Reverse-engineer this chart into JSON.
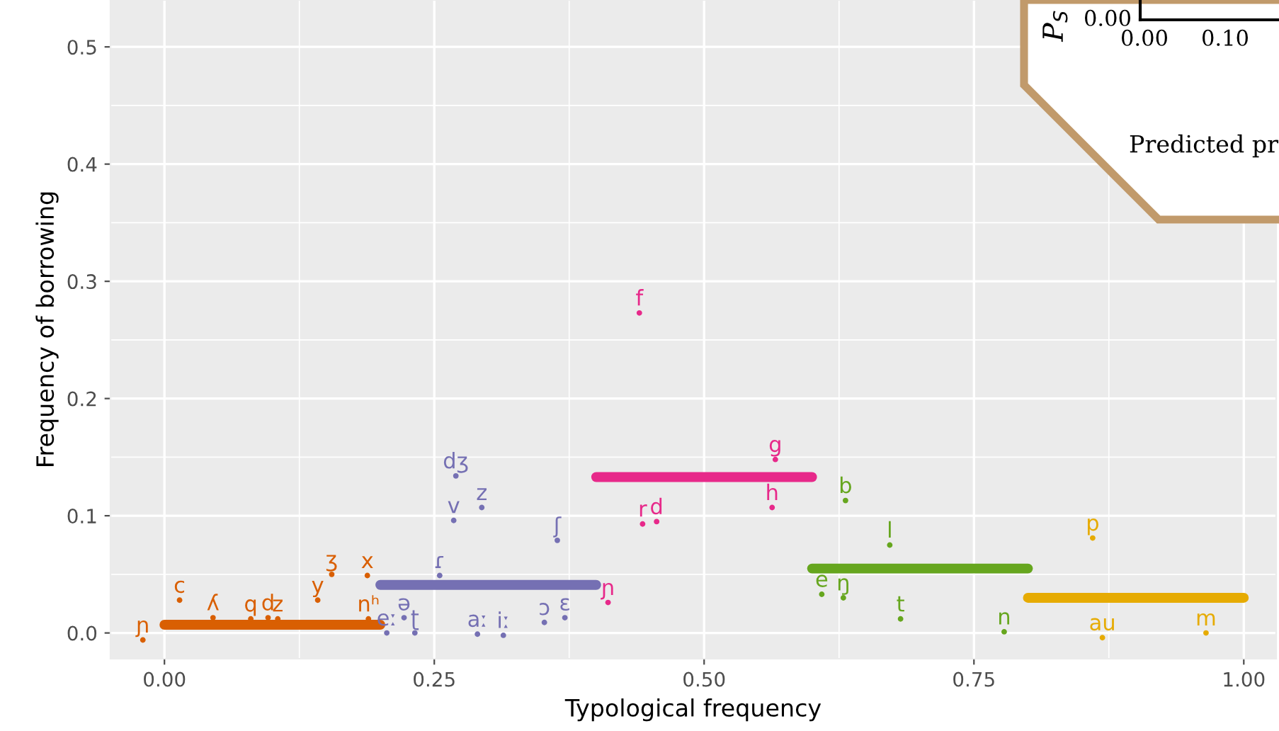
{
  "chart_data": {
    "type": "scatter",
    "xlabel": "Typological frequency",
    "ylabel": "Frequency of borrowing",
    "xlim": [
      -0.05,
      1.03
    ],
    "ylim": [
      -0.022,
      0.54
    ],
    "xticks": [
      {
        "value": 0,
        "label": "0.00"
      },
      {
        "value": 0.25,
        "label": "0.25"
      },
      {
        "value": 0.5,
        "label": "0.50"
      },
      {
        "value": 0.75,
        "label": "0.75"
      },
      {
        "value": 1,
        "label": "1.00"
      }
    ],
    "yticks": [
      {
        "value": 0,
        "label": "0.0"
      },
      0.1,
      0.2,
      0.3,
      0.4,
      0.5
    ],
    "grid": true,
    "series": [
      {
        "type": "line",
        "color": "#d95f02",
        "x": [
          0,
          0.2
        ],
        "values": [
          0.007,
          0.007
        ]
      },
      {
        "type": "line",
        "color": "#7570b3",
        "x": [
          0.2,
          0.4
        ],
        "values": [
          0.041,
          0.041
        ]
      },
      {
        "type": "line",
        "color": "#e7298a",
        "x": [
          0.4,
          0.6
        ],
        "values": [
          0.133,
          0.133
        ]
      },
      {
        "type": "line",
        "color": "#66a61e",
        "x": [
          0.6,
          0.8
        ],
        "values": [
          0.055,
          0.055
        ]
      },
      {
        "type": "line",
        "color": "#e6ab02",
        "x": [
          0.8,
          1.0
        ],
        "values": [
          0.03,
          0.03
        ]
      },
      {
        "marker": "circle",
        "color": "#d95f02",
        "x": [
          0.155,
          0.188,
          0.014,
          0.142,
          -0.02,
          0.045,
          0.08,
          0.096,
          0.105,
          0.189
        ],
        "values": [
          0.05,
          0.049,
          0.028,
          0.028,
          -0.006,
          0.013,
          0.012,
          0.013,
          0.012,
          0.012
        ],
        "value_labels": [
          "ʒ",
          "x",
          "c",
          "y",
          "ɲ",
          "ʎ",
          "q",
          "d",
          "z",
          "nʰ"
        ]
      },
      {
        "marker": "circle",
        "color": "#7570b3",
        "x": [
          0.27,
          0.294,
          0.268,
          0.364,
          0.255,
          0.222,
          0.206,
          0.232,
          0.29,
          0.314,
          0.352,
          0.371
        ],
        "values": [
          0.134,
          0.107,
          0.096,
          0.079,
          0.049,
          0.013,
          0.0,
          0.0,
          -0.001,
          -0.002,
          0.009,
          0.013
        ],
        "value_labels": [
          "dʒ",
          "z",
          "v",
          "ʃ",
          "ɾ",
          "ə",
          "eː",
          "ʈ",
          "aː",
          "iː",
          "ɔ",
          "ɛ"
        ]
      },
      {
        "marker": "circle",
        "color": "#e7298a",
        "x": [
          0.44,
          0.566,
          0.563,
          0.443,
          0.456,
          0.411
        ],
        "values": [
          0.273,
          0.148,
          0.107,
          0.093,
          0.095,
          0.026
        ],
        "value_labels": [
          "f",
          "g",
          "h",
          "r",
          "d",
          "ɲ"
        ]
      },
      {
        "marker": "circle",
        "color": "#66a61e",
        "x": [
          0.631,
          0.672,
          0.609,
          0.629,
          0.682,
          0.778
        ],
        "values": [
          0.113,
          0.075,
          0.033,
          0.03,
          0.012,
          0.001
        ],
        "value_labels": [
          "b",
          "l",
          "e",
          "ŋ",
          "t",
          "n"
        ]
      },
      {
        "marker": "circle",
        "color": "#e6ab02",
        "x": [
          0.86,
          0.869,
          0.965
        ],
        "values": [
          0.081,
          -0.004,
          0.0
        ],
        "value_labels": [
          "p",
          "au",
          "m"
        ]
      }
    ],
    "annotations": [
      "P$_{S}$",
      "0.00",
      "0.00",
      "0.10",
      "Predicted pr"
    ]
  }
}
